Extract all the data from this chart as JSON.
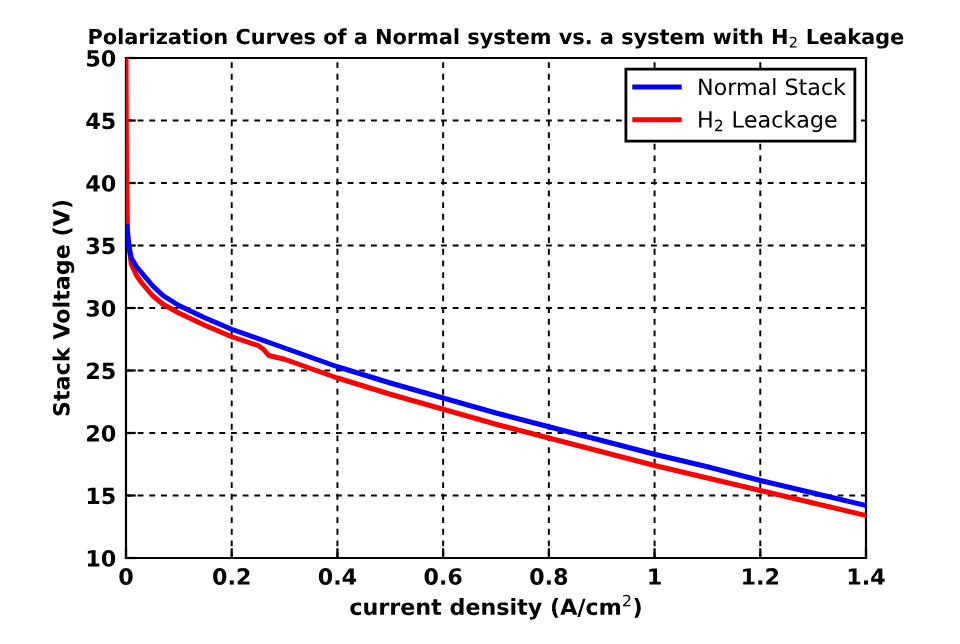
{
  "chart_data": {
    "type": "line",
    "title": "Polarization Curves of a Normal system vs. a system with H$_{2}$ Leakage",
    "xlabel": "current density (A/cm$^{2}$)",
    "ylabel": "Stack Voltage (V)",
    "series": [
      {
        "name": "Normal Stack",
        "color": "#0000ff",
        "x": [
          0.002,
          0.005,
          0.01,
          0.02,
          0.03,
          0.05,
          0.07,
          0.1,
          0.15,
          0.2,
          0.3,
          0.4,
          0.5,
          0.6,
          0.7,
          0.8,
          0.9,
          1.0,
          1.1,
          1.2,
          1.3,
          1.4
        ],
        "values": [
          36.5,
          35,
          34,
          33.3,
          32.8,
          31.8,
          31.0,
          30.2,
          29.2,
          28.3,
          26.8,
          25.3,
          24.0,
          22.8,
          21.6,
          20.5,
          19.4,
          18.3,
          17.3,
          16.2,
          15.2,
          14.2
        ]
      },
      {
        "name": "H$_{2}$ Leackage",
        "color": "#ff0000",
        "x": [
          0,
          0.001,
          0.003,
          0.01,
          0.02,
          0.03,
          0.05,
          0.07,
          0.1,
          0.15,
          0.2,
          0.25,
          0.26,
          0.27,
          0.3,
          0.4,
          0.5,
          0.6,
          0.7,
          0.8,
          0.9,
          1.0,
          1.1,
          1.2,
          1.3,
          1.4
        ],
        "values": [
          50,
          40,
          36,
          33.5,
          32.6,
          32.0,
          31.0,
          30.3,
          29.6,
          28.6,
          27.7,
          27.0,
          26.7,
          26.2,
          25.9,
          24.4,
          23.1,
          21.9,
          20.7,
          19.6,
          18.5,
          17.4,
          16.4,
          15.4,
          14.4,
          13.4
        ]
      }
    ],
    "xlim": [
      0,
      1.4
    ],
    "xticks": [
      0,
      0.2,
      0.4,
      0.6,
      0.8,
      1,
      1.2,
      1.4
    ],
    "ylim": [
      10,
      50
    ],
    "yticks": [
      10,
      15,
      20,
      25,
      30,
      35,
      40,
      45,
      50
    ],
    "grid": true,
    "legend": "top right",
    "line_style": "solid"
  }
}
